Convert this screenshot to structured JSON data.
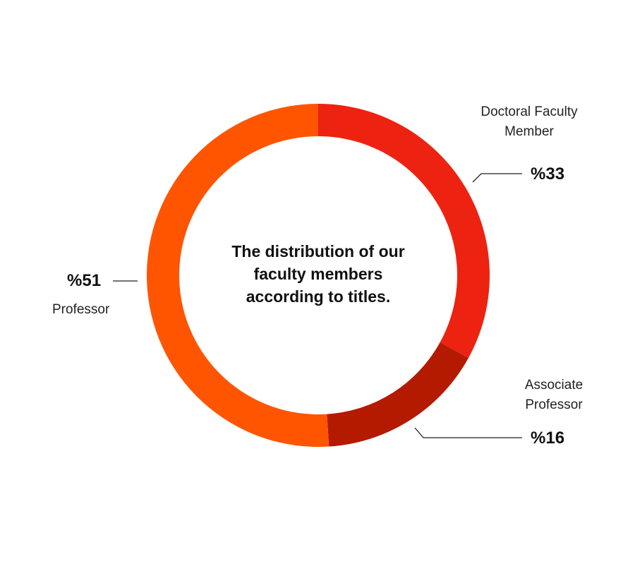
{
  "chart_data": {
    "type": "donut",
    "title": "The distribution of our faculty members according to titles.",
    "categories": [
      "Doctoral Faculty Member",
      "Associate Professor",
      "Professor"
    ],
    "values": [
      33,
      16,
      51
    ],
    "value_labels": [
      "%33",
      "%16",
      "%51"
    ],
    "colors": [
      "#ee2211",
      "#b31a00",
      "#ff5500"
    ]
  }
}
